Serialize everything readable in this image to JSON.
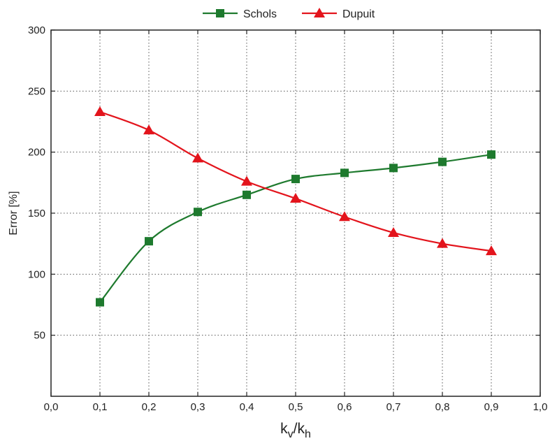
{
  "chart_data": {
    "type": "line",
    "title": "",
    "xlabel": "k_v/k_h",
    "xlabel_main_1": "k",
    "xlabel_sub_1": "v",
    "xlabel_slash": "/",
    "xlabel_main_2": "k",
    "xlabel_sub_2": "h",
    "ylabel": "Error [%]",
    "xlim": [
      0.0,
      1.0
    ],
    "ylim": [
      0,
      300
    ],
    "x_ticks": [
      "0,0",
      "0,1",
      "0,2",
      "0,3",
      "0,4",
      "0,5",
      "0,6",
      "0,7",
      "0,8",
      "0,9",
      "1,0"
    ],
    "y_ticks": [
      "50",
      "100",
      "150",
      "200",
      "250",
      "300"
    ],
    "grid": true,
    "legend_position": "top-center",
    "series": [
      {
        "name": "Schols",
        "color": "#1e7a2e",
        "marker": "square",
        "x": [
          0.1,
          0.2,
          0.3,
          0.4,
          0.5,
          0.6,
          0.7,
          0.8,
          0.9
        ],
        "y": [
          77,
          127,
          151,
          165,
          178,
          183,
          187,
          192,
          198
        ]
      },
      {
        "name": "Dupuit",
        "color": "#e3141c",
        "marker": "triangle",
        "x": [
          0.1,
          0.2,
          0.3,
          0.4,
          0.5,
          0.6,
          0.7,
          0.8,
          0.9
        ],
        "y": [
          233,
          218,
          195,
          176,
          162,
          147,
          134,
          125,
          119
        ]
      }
    ]
  }
}
